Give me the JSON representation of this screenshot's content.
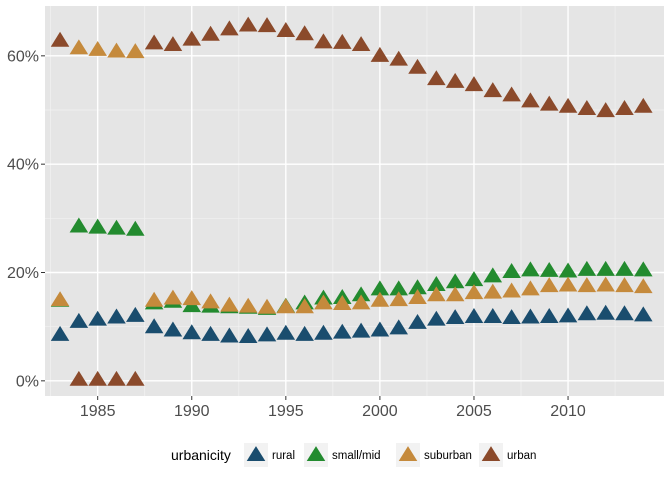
{
  "chart_data": {
    "type": "scatter",
    "marker": "triangle",
    "x_ticks": [
      1985,
      1990,
      1995,
      2000,
      2005,
      2010
    ],
    "y_ticks": [
      0,
      20,
      40,
      60
    ],
    "y_tick_labels": [
      "0%",
      "20%",
      "40%",
      "60%"
    ],
    "xlim": [
      1982.2,
      2015.1
    ],
    "ylim": [
      -2.8,
      69.2
    ],
    "grid": true,
    "legend_position": "bottom",
    "legend_title": "urbanicity",
    "series": [
      {
        "name": "rural",
        "color": "#1a4d6e",
        "x": [
          1983,
          1984,
          1985,
          1986,
          1987,
          1988,
          1989,
          1990,
          1991,
          1992,
          1993,
          1994,
          1995,
          1996,
          1997,
          1998,
          1999,
          2000,
          2001,
          2002,
          2003,
          2004,
          2005,
          2006,
          2007,
          2008,
          2009,
          2010,
          2011,
          2012,
          2013,
          2014
        ],
        "y": [
          8.5,
          10.9,
          11.3,
          11.7,
          12.0,
          9.9,
          9.3,
          8.8,
          8.5,
          8.2,
          8.1,
          8.4,
          8.7,
          8.5,
          8.7,
          8.9,
          9.1,
          9.3,
          9.7,
          10.7,
          11.3,
          11.6,
          11.8,
          11.8,
          11.6,
          11.7,
          11.8,
          11.9,
          12.3,
          12.4,
          12.3,
          12.1
        ]
      },
      {
        "name": "small/mid",
        "color": "#238b2f",
        "x": [
          1983,
          1984,
          1985,
          1986,
          1987,
          1988,
          1989,
          1990,
          1991,
          1992,
          1993,
          1994,
          1995,
          1996,
          1997,
          1998,
          1999,
          2000,
          2001,
          2002,
          2003,
          2004,
          2005,
          2006,
          2007,
          2008,
          2009,
          2010,
          2011,
          2012,
          2013,
          2014
        ],
        "y": [
          14.8,
          28.5,
          28.3,
          28.1,
          27.9,
          14.3,
          14.6,
          13.8,
          13.7,
          13.6,
          13.5,
          13.3,
          13.7,
          14.3,
          15.2,
          15.3,
          15.8,
          16.9,
          16.9,
          17.1,
          17.7,
          18.2,
          18.6,
          19.3,
          20.1,
          20.4,
          20.3,
          20.2,
          20.5,
          20.5,
          20.5,
          20.4
        ]
      },
      {
        "name": "suburban",
        "color": "#c58a3c",
        "x": [
          1983,
          1984,
          1985,
          1986,
          1987,
          1988,
          1989,
          1990,
          1991,
          1992,
          1993,
          1994,
          1995,
          1996,
          1997,
          1998,
          1999,
          2000,
          2001,
          2002,
          2003,
          2004,
          2005,
          2006,
          2007,
          2008,
          2009,
          2010,
          2011,
          2012,
          2013,
          2014
        ],
        "y": [
          14.9,
          61.4,
          61.1,
          60.8,
          60.7,
          14.8,
          15.2,
          15.1,
          14.5,
          13.9,
          13.7,
          13.5,
          13.6,
          13.6,
          14.3,
          14.2,
          14.3,
          14.8,
          14.9,
          15.3,
          15.8,
          15.8,
          16.2,
          16.3,
          16.5,
          16.9,
          17.5,
          17.6,
          17.5,
          17.6,
          17.5,
          17.3
        ]
      },
      {
        "name": "urban",
        "color": "#8b4a2b",
        "x": [
          1983,
          1984,
          1985,
          1986,
          1987,
          1988,
          1989,
          1990,
          1991,
          1992,
          1993,
          1994,
          1995,
          1996,
          1997,
          1998,
          1999,
          2000,
          2001,
          2002,
          2003,
          2004,
          2005,
          2006,
          2007,
          2008,
          2009,
          2010,
          2011,
          2012,
          2013,
          2014
        ],
        "y": [
          62.8,
          0.2,
          0.2,
          0.2,
          0.2,
          62.3,
          62.0,
          63.0,
          63.9,
          64.9,
          65.6,
          65.5,
          64.6,
          64.0,
          62.5,
          62.4,
          62.0,
          60.0,
          59.3,
          57.8,
          55.7,
          55.2,
          54.6,
          53.5,
          52.7,
          51.6,
          51.0,
          50.6,
          50.2,
          49.8,
          50.2,
          50.6
        ]
      }
    ]
  }
}
